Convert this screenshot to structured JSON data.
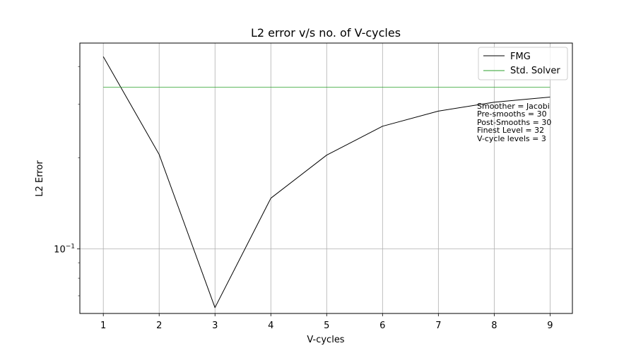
{
  "chart_data": {
    "type": "line",
    "title": "L2 error v/s no. of V-cycles",
    "xlabel": "V-cycles",
    "ylabel": "L2 Error",
    "x": [
      1,
      2,
      3,
      4,
      5,
      6,
      7,
      8,
      9
    ],
    "xlim": [
      0.58,
      9.4
    ],
    "ylim": [
      0.0612,
      0.478
    ],
    "yscale": "log",
    "grid": true,
    "legend_position": "top-right",
    "x_ticks": [
      "1",
      "2",
      "3",
      "4",
      "5",
      "6",
      "7",
      "8",
      "9"
    ],
    "y_major_ticks": [
      {
        "value": 0.1,
        "label_base": "10",
        "label_exp": "−1"
      }
    ],
    "y_minor_ticks": [
      0.07,
      0.08,
      0.09,
      0.2,
      0.3,
      0.4
    ],
    "series": [
      {
        "name": "FMG",
        "color": "#000000",
        "values": [
          0.431,
          0.205,
          0.064,
          0.147,
          0.204,
          0.254,
          0.285,
          0.305,
          0.317
        ]
      },
      {
        "name": "Std. Solver",
        "color": "#2ca02c",
        "values": [
          0.342,
          0.342,
          0.342,
          0.342,
          0.342,
          0.342,
          0.342,
          0.342,
          0.342
        ]
      }
    ],
    "annotations": [
      "Smoother = Jacobi",
      "Pre-smooths = 30",
      "Post-Smooths = 30",
      "Finest Level = 32",
      "V-cycle levels = 3"
    ]
  }
}
